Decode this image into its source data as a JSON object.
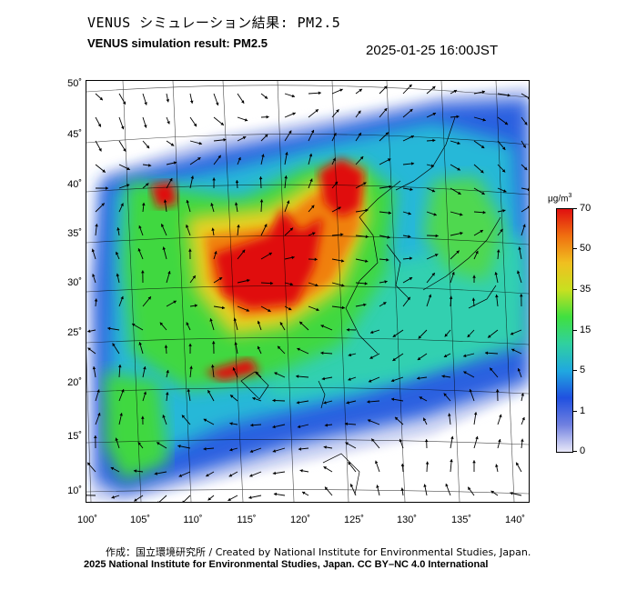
{
  "header": {
    "title_jp": "VENUS シミュレーション結果: PM2.5",
    "title_en": "VENUS simulation result: PM2.5",
    "timestamp": "2025-01-25 16:00JST"
  },
  "map": {
    "lat_labels": [
      "50˚",
      "45˚",
      "40˚",
      "35˚",
      "30˚",
      "25˚",
      "20˚",
      "15˚",
      "10˚"
    ],
    "lon_labels": [
      "100˚",
      "105˚",
      "110˚",
      "115˚",
      "120˚",
      "125˚",
      "130˚",
      "135˚",
      "140˚"
    ]
  },
  "colorbar": {
    "unit_base": "μg/m",
    "unit_sup": "3",
    "ticks": [
      "70",
      "50",
      "35",
      "15",
      "5",
      "1",
      "0"
    ],
    "colors": [
      "#e8e8f8",
      "#7080e0",
      "#2050e0",
      "#20a8e0",
      "#30d0a0",
      "#40e040",
      "#c8e020",
      "#f0c020",
      "#f07010",
      "#e01010"
    ]
  },
  "credits": {
    "jp": "作成：国立環境研究所 / Created by National Institute for Environmental Studies, Japan.",
    "en": "2025 National Institute for Environmental Studies, Japan. CC BY–NC 4.0 International"
  }
}
